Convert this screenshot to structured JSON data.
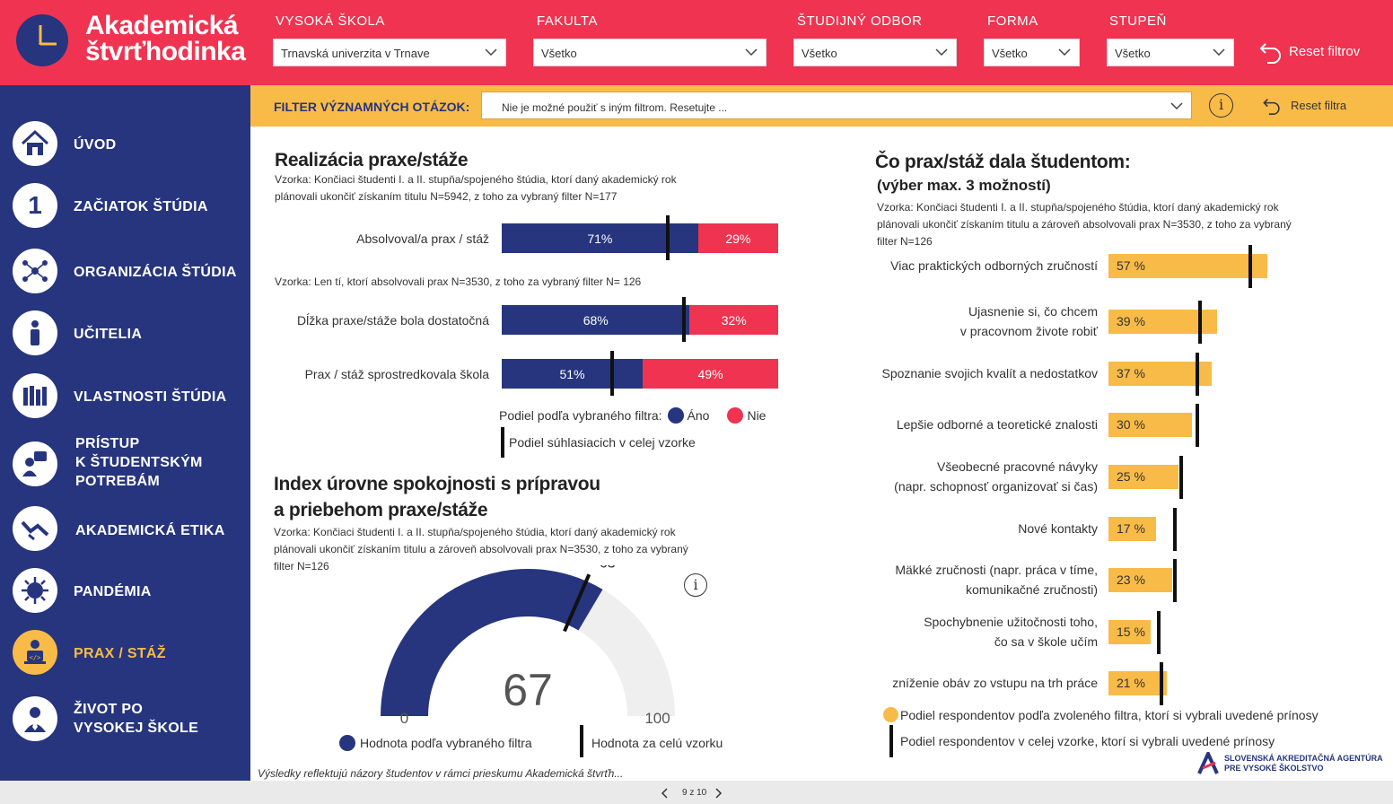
{
  "app": {
    "logo_line1": "Akademická",
    "logo_line2": "štvrťhodinka"
  },
  "filters": [
    {
      "label": "VYSOKÁ ŠKOLA",
      "value": "Trnavská univerzita v Trnave"
    },
    {
      "label": "FAKULTA",
      "value": "Všetko"
    },
    {
      "label": "ŠTUDIJNÝ ODBOR",
      "value": "Všetko"
    },
    {
      "label": "FORMA",
      "value": "Všetko"
    },
    {
      "label": "STUPEŇ",
      "value": "Všetko"
    }
  ],
  "reset_filters": "Reset filtrov",
  "sidebar": {
    "items": [
      {
        "label": "ÚVOD",
        "icon": "home-icon"
      },
      {
        "label": "ZAČIATOK ŠTÚDIA",
        "icon": "number-one-icon"
      },
      {
        "label": "ORGANIZÁCIA ŠTÚDIA",
        "icon": "network-icon"
      },
      {
        "label": "UČITELIA",
        "icon": "teacher-icon"
      },
      {
        "label": "VLASTNOSTI ŠTÚDIA",
        "icon": "books-icon"
      },
      {
        "label": "PRÍSTUP",
        "label2": "K ŠTUDENTSKÝM",
        "label3": "POTREBÁM",
        "icon": "support-icon"
      },
      {
        "label": "AKADEMICKÁ ETIKA",
        "icon": "handshake-icon"
      },
      {
        "label": "PANDÉMIA",
        "icon": "virus-icon"
      },
      {
        "label": "PRAX / STÁŽ",
        "icon": "developer-icon",
        "active": true
      },
      {
        "label": "ŽIVOT PO",
        "label2": "VYSOKEJ ŠKOLE",
        "icon": "graduate-icon"
      }
    ]
  },
  "question_filter": {
    "label": "FILTER VÝZNAMNÝCH OTÁZOK:",
    "value": "Nie je možné použiť s iným filtrom. Resetujte ...",
    "reset": "Reset filtra",
    "info": "i"
  },
  "realization": {
    "title": "Realizácia praxe/stáže",
    "sample1_line1": "Vzorka: Končiaci študenti I. a II. stupňa/spojeného štúdia, ktorí daný akademický rok",
    "sample1_line2": "plánovali ukončiť získaním titulu N=5942, z toho za vybraný filter N=177",
    "sample2": "Vzorka: Len tí, ktorí absolvovali prax N=3530, z toho za vybraný filter N= 126",
    "legend_prefix": "Podiel podľa vybraného filtra:",
    "legend_yes": "Áno",
    "legend_no": "Nie",
    "legend_marker": "Podiel súhlasiacich v celej vzorke",
    "color_yes": "#26357e",
    "color_no": "#ef3350"
  },
  "chart_data": [
    {
      "type": "bar",
      "stacked": true,
      "orientation": "horizontal",
      "categories": [
        "Absolvoval/a prax / stáž",
        "Dĺžka praxe/stáže bola dostatočná",
        "Prax / stáž sprostredkovala škola"
      ],
      "series": [
        {
          "name": "Áno",
          "values": [
            71,
            68,
            51
          ],
          "labels": [
            "71%",
            "68%",
            "51%"
          ]
        },
        {
          "name": "Nie",
          "values": [
            29,
            32,
            49
          ],
          "labels": [
            "29%",
            "32%",
            "49%"
          ]
        }
      ],
      "marker_name": "Podiel súhlasiacich v celej vzorke",
      "markers": [
        60,
        66,
        40
      ]
    },
    {
      "type": "gauge",
      "title_line1": "Index úrovne spokojnosti s prípravou",
      "title_line2": "a priebehom praxe/stáže",
      "sample_line1": "Vzorka: Končiaci študenti I. a II. stupňa/spojeného štúdia, ktorí daný akademický rok",
      "sample_line2": "plánovali ukončiť získaním titulu a zároveň absolvovali prax N=3530, z toho za vybraný",
      "sample_line3": "filter N=126",
      "value": 67,
      "value_label": "67",
      "reference": 63,
      "reference_label": "63",
      "min": 0,
      "min_label": "0",
      "max": 100,
      "max_label": "100",
      "legend_value": "Hodnota podľa vybraného filtra",
      "legend_reference": "Hodnota za celú vzorku",
      "info": "i",
      "color_value": "#26357e",
      "color_rest": "#efefef"
    },
    {
      "type": "bar",
      "orientation": "horizontal",
      "title_line1": "Čo prax/stáž dala študentom:",
      "title_line2": "(výber max. 3 možností)",
      "sample_line1": "Vzorka: Končiaci študenti I. a II. stupňa/spojeného štúdia, ktorí daný akademický rok",
      "sample_line2": "plánovali ukončiť získaním titulu a zároveň absolvovali prax N=3530, z toho za vybraný",
      "sample_line3": "filter N=126",
      "categories": [
        [
          "Viac praktických odborných zručností"
        ],
        [
          "Ujasnenie si, čo chcem",
          "v pracovnom živote robiť"
        ],
        [
          "Spoznanie svojich kvalít a nedostatkov"
        ],
        [
          "Lepšie odborné a teoretické znalosti"
        ],
        [
          "Všeobecné pracovné návyky",
          "(napr. schopnosť organizovať si čas)"
        ],
        [
          "Nové kontakty"
        ],
        [
          "Mäkké zručnosti (napr. práca v tíme,",
          "komunikačné zručnosti)"
        ],
        [
          "Spochybnenie užitočnosti toho,",
          "čo sa v škole učím"
        ],
        [
          "zníženie obáv zo vstupu na trh práce"
        ]
      ],
      "values": [
        57,
        39,
        37,
        30,
        25,
        17,
        23,
        15,
        21
      ],
      "value_labels": [
        "57 %",
        "39 %",
        "37 %",
        "30 %",
        "25 %",
        "17 %",
        "23 %",
        "15 %",
        "21 %"
      ],
      "markers": [
        51,
        33,
        32,
        32,
        26,
        24,
        24,
        18,
        19
      ],
      "legend_value": "Podiel respondentov podľa zvoleného filtra, ktorí si vybrali uvedené prínosy",
      "legend_marker": "Podiel respondentov v celej vzorke, ktorí si vybrali uvedené prínosy",
      "color": "#f8bb48"
    }
  ],
  "footer": {
    "note": "Výsledky reflektujú názory študentov v rámci prieskumu Akademická štvrťh...",
    "agency_line1": "SLOVENSKÁ AKREDITAČNÁ AGENTÚRA",
    "agency_line2": "PRE VYSOKÉ ŠKOLSTVO",
    "page": "9 z 10"
  }
}
